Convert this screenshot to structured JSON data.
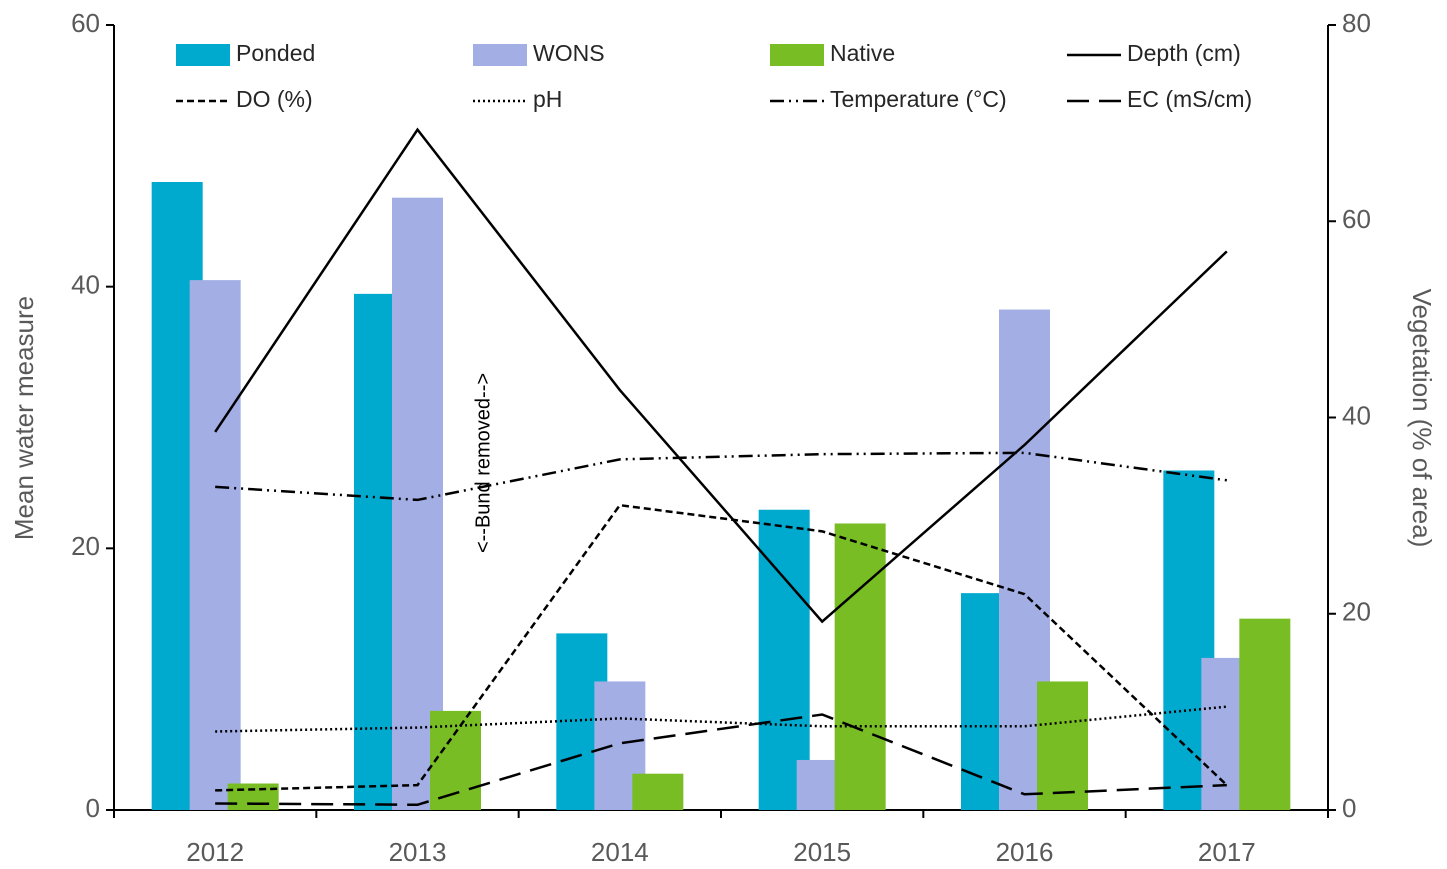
{
  "chart_data": {
    "type": "bar-line",
    "categories": [
      "2012",
      "2013",
      "2014",
      "2015",
      "2016",
      "2017"
    ],
    "y_label": "Mean water measure",
    "y2_label": "Vegetation (% of area)",
    "annotation": "<--Bund removed-->",
    "ylim": [
      0,
      60
    ],
    "yticks": [
      0,
      20,
      40,
      60
    ],
    "y2lim": [
      0,
      80
    ],
    "y2ticks": [
      0,
      20,
      40,
      60,
      80
    ],
    "series": [
      {
        "name": "Ponded",
        "type": "bar",
        "axis": "y2",
        "color": "#00a9ce",
        "values": [
          64.0,
          52.6,
          18.0,
          30.6,
          22.1,
          34.6
        ]
      },
      {
        "name": "WONS",
        "type": "bar",
        "axis": "y2",
        "color": "#a2aee4",
        "values": [
          54.0,
          62.4,
          13.1,
          5.1,
          51.0,
          15.5
        ]
      },
      {
        "name": "Native",
        "type": "bar",
        "axis": "y2",
        "color": "#79bd25",
        "values": [
          2.7,
          10.1,
          3.7,
          29.2,
          13.1,
          19.5
        ]
      },
      {
        "name": "Depth (cm)",
        "type": "line",
        "color": "#000000",
        "dash": "solid",
        "values": [
          28.9,
          52.0,
          32.1,
          14.4,
          27.9,
          42.7
        ]
      },
      {
        "name": "DO (%)",
        "type": "line",
        "color": "#000000",
        "dash": "dashed",
        "values": [
          1.5,
          1.9,
          23.3,
          21.3,
          16.5,
          1.9
        ]
      },
      {
        "name": "pH",
        "type": "line",
        "color": "#000000",
        "dash": "dotted",
        "values": [
          6.0,
          6.3,
          7.0,
          6.4,
          6.4,
          7.9
        ]
      },
      {
        "name": "Temperature (°C)",
        "type": "line",
        "color": "#000000",
        "dash": "dashdot",
        "values": [
          24.7,
          23.7,
          26.8,
          27.2,
          27.3,
          25.2
        ]
      },
      {
        "name": "EC (mS/cm)",
        "type": "line",
        "color": "#000000",
        "dash": "longdash",
        "values": [
          0.5,
          0.4,
          5.1,
          7.3,
          1.2,
          1.9
        ]
      }
    ]
  }
}
